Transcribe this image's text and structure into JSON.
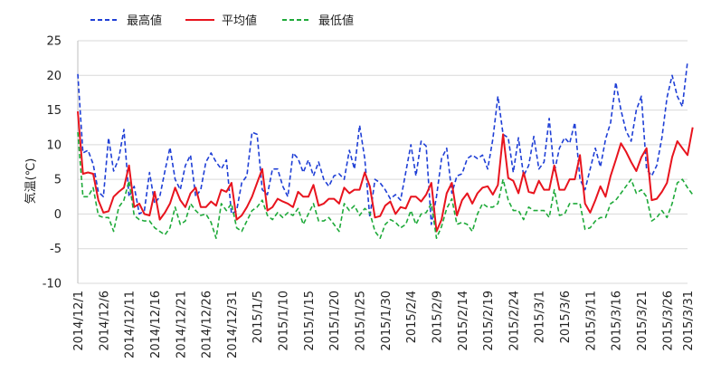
{
  "chart_data": {
    "type": "line",
    "ylabel": "気温(℃)",
    "ylim": [
      -10,
      25
    ],
    "yticks": [
      -10,
      -5,
      0,
      5,
      10,
      15,
      20,
      25
    ],
    "grid": true,
    "legend_position": "top-left",
    "xtick_labels": [
      "2014/12/1",
      "2014/12/6",
      "2014/12/11",
      "2014/12/16",
      "2014/12/21",
      "2014/12/26",
      "2014/12/31",
      "2015/1/5",
      "2015/1/10",
      "2015/1/15",
      "2015/1/20",
      "2015/1/25",
      "2015/1/30",
      "2015/2/4",
      "2015/2/9",
      "2015/2/14",
      "2015/2/19",
      "2015/2/24",
      "2015/3/1",
      "2015/3/6",
      "2015/3/11",
      "2015/3/16",
      "2015/3/21",
      "2015/3/26",
      "2015/3/31"
    ],
    "series": [
      {
        "name": "最高値",
        "color": "#1f3fd6",
        "dash": "dashed",
        "values": [
          20.2,
          8.8,
          9.2,
          7.2,
          3.2,
          2.5,
          11.0,
          6.2,
          8.0,
          12.2,
          2.5,
          4.0,
          0.0,
          0.5,
          6.0,
          1.5,
          2.5,
          6.2,
          9.6,
          5.0,
          3.5,
          7.0,
          8.5,
          2.5,
          3.5,
          7.5,
          8.8,
          7.5,
          6.5,
          7.8,
          0.0,
          0.5,
          4.5,
          5.5,
          11.8,
          11.5,
          3.5,
          2.8,
          6.5,
          6.5,
          4.0,
          2.5,
          8.8,
          8.0,
          6.0,
          7.8,
          5.5,
          7.5,
          5.0,
          4.0,
          5.5,
          5.8,
          5.0,
          9.2,
          6.5,
          12.8,
          8.0,
          -0.5,
          5.0,
          4.5,
          3.5,
          2.2,
          2.8,
          2.0,
          6.0,
          10.0,
          5.5,
          10.5,
          9.8,
          -1.5,
          2.5,
          8.0,
          9.5,
          3.0,
          5.5,
          5.8,
          8.0,
          8.5,
          8.0,
          8.5,
          6.5,
          10.8,
          17.0,
          11.5,
          11.0,
          6.0,
          11.0,
          5.5,
          7.0,
          11.2,
          6.5,
          7.5,
          13.8,
          6.0,
          9.5,
          11.0,
          10.2,
          13.2,
          5.0,
          3.5,
          6.5,
          9.5,
          6.8,
          10.8,
          13.2,
          19.0,
          15.0,
          12.0,
          10.5,
          15.0,
          17.0,
          6.5,
          5.5,
          7.0,
          11.0,
          16.8,
          20.0,
          17.0,
          15.5,
          22.0
        ]
      },
      {
        "name": "平均値",
        "color": "#e8141e",
        "dash": "solid",
        "values": [
          14.8,
          5.8,
          6.0,
          5.8,
          2.0,
          0.2,
          0.4,
          2.5,
          3.2,
          3.8,
          7.0,
          1.0,
          1.5,
          0.0,
          -0.2,
          3.2,
          -0.8,
          0.2,
          1.5,
          3.8,
          2.0,
          1.0,
          3.0,
          3.8,
          1.0,
          1.0,
          1.8,
          1.2,
          3.5,
          3.2,
          4.5,
          -0.8,
          -0.2,
          1.0,
          2.5,
          4.5,
          6.5,
          0.5,
          1.0,
          2.2,
          1.8,
          1.5,
          1.0,
          3.2,
          2.5,
          2.5,
          4.2,
          1.2,
          1.5,
          2.2,
          2.2,
          1.5,
          3.8,
          3.0,
          3.5,
          3.5,
          6.0,
          4.0,
          -0.5,
          -0.3,
          1.2,
          1.8,
          0.0,
          1.0,
          0.8,
          2.5,
          2.5,
          1.8,
          2.8,
          4.5,
          -2.5,
          -0.8,
          3.0,
          4.5,
          -0.2,
          2.0,
          3.0,
          1.5,
          3.0,
          3.8,
          4.0,
          2.8,
          4.2,
          11.5,
          5.2,
          4.8,
          3.0,
          6.0,
          3.2,
          3.0,
          4.8,
          3.5,
          3.5,
          7.0,
          3.5,
          3.5,
          5.0,
          5.0,
          8.5,
          1.5,
          0.2,
          2.0,
          4.0,
          2.5,
          5.5,
          7.8,
          10.2,
          9.0,
          7.5,
          6.2,
          8.2,
          9.5,
          2.0,
          2.2,
          3.2,
          4.5,
          8.2,
          10.5,
          9.5,
          8.5,
          12.5
        ]
      },
      {
        "name": "最低値",
        "color": "#1faa3a",
        "dash": "dashed",
        "values": [
          11.8,
          2.5,
          2.5,
          3.8,
          -0.2,
          -0.5,
          -0.5,
          -2.5,
          1.0,
          2.0,
          4.8,
          -0.2,
          -0.8,
          -1.0,
          -1.0,
          -2.0,
          -2.5,
          -3.0,
          -2.0,
          1.0,
          -1.5,
          -1.0,
          1.5,
          0.5,
          -0.2,
          0.0,
          -1.2,
          -3.5,
          1.5,
          0.5,
          1.5,
          -2.0,
          -2.5,
          -1.0,
          0.5,
          1.0,
          2.0,
          -0.2,
          -0.8,
          0.2,
          -0.5,
          0.2,
          -0.2,
          0.8,
          -1.5,
          0.0,
          1.5,
          -1.0,
          -1.0,
          -0.5,
          -1.5,
          -2.5,
          1.5,
          0.5,
          1.2,
          -0.2,
          0.8,
          0.2,
          -2.5,
          -3.5,
          -1.5,
          -0.8,
          -1.2,
          -2.0,
          -1.5,
          0.5,
          -1.5,
          0.0,
          0.2,
          1.5,
          -3.5,
          -1.8,
          0.8,
          2.2,
          -1.5,
          -1.2,
          -1.5,
          -2.5,
          0.0,
          1.5,
          1.0,
          1.0,
          1.5,
          5.0,
          2.0,
          0.5,
          0.5,
          -0.8,
          1.0,
          0.5,
          0.5,
          0.5,
          -0.5,
          3.5,
          -0.2,
          0.0,
          1.5,
          1.5,
          1.5,
          -2.2,
          -2.0,
          -1.0,
          -0.5,
          -0.5,
          1.5,
          2.0,
          3.0,
          4.0,
          5.0,
          3.0,
          3.5,
          2.5,
          -1.0,
          -0.5,
          0.5,
          -0.5,
          1.5,
          4.5,
          5.0,
          3.8,
          2.8
        ]
      }
    ]
  }
}
